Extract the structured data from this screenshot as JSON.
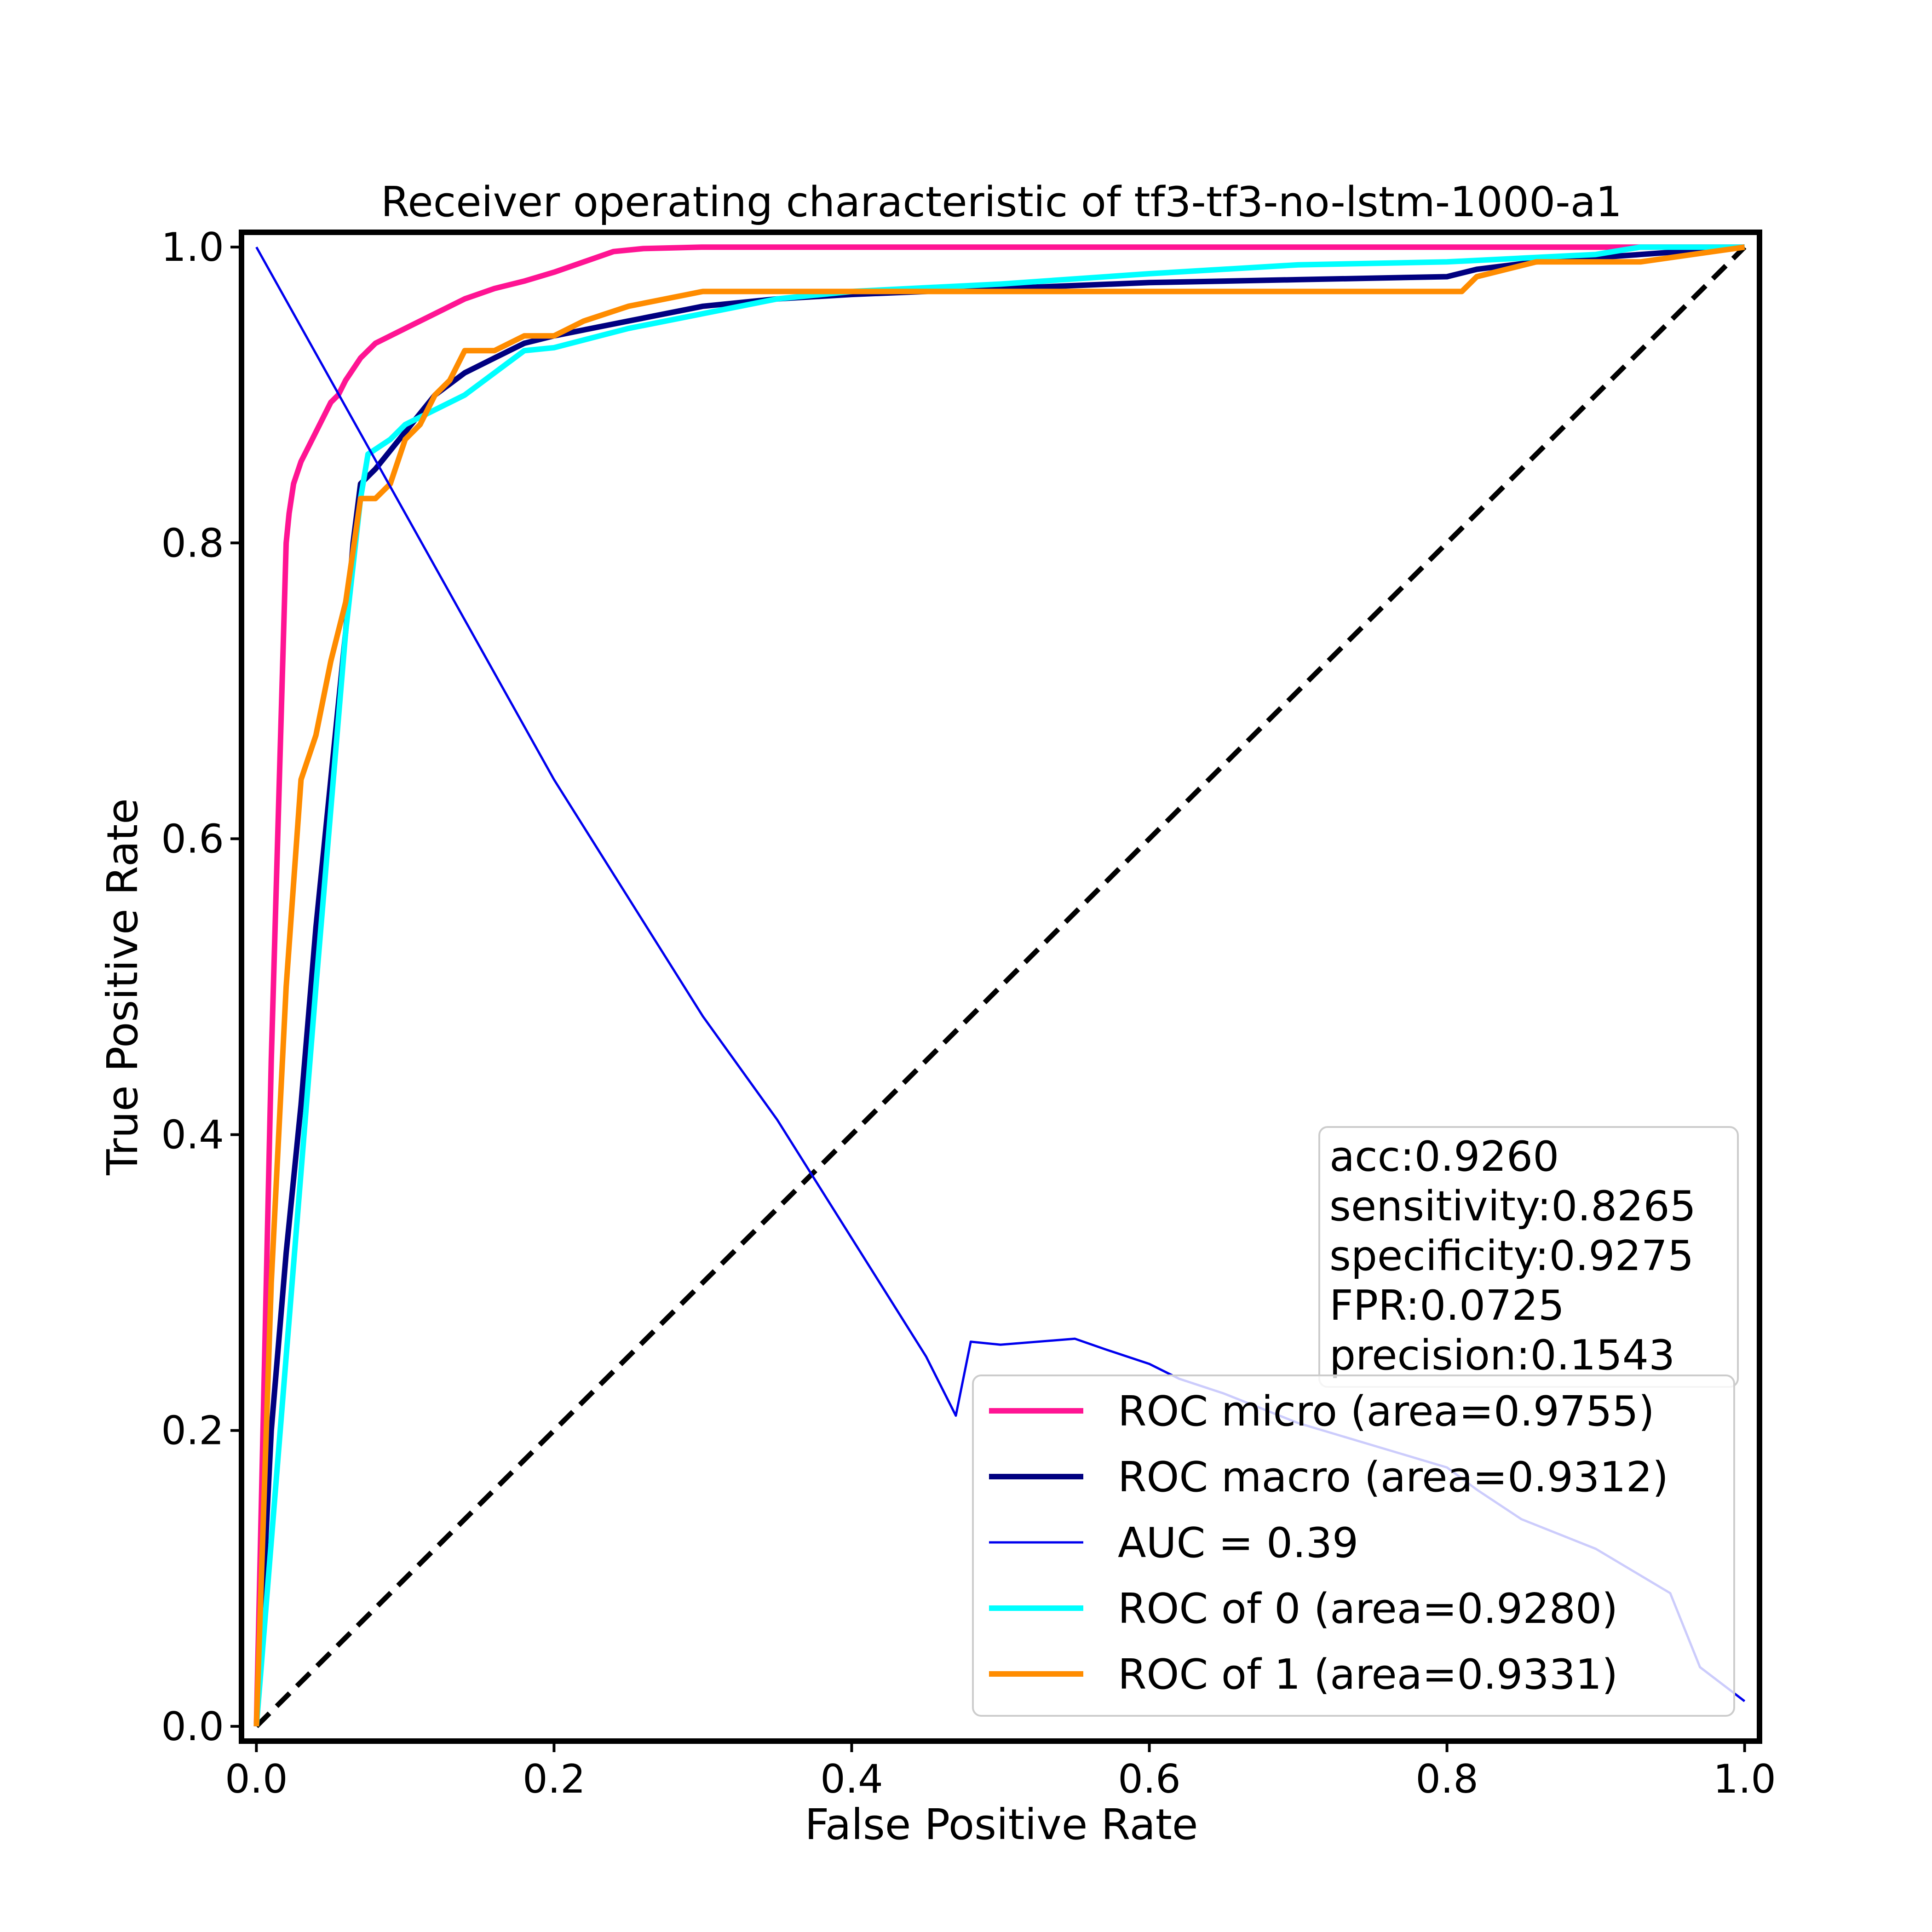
{
  "chart_data": {
    "type": "line",
    "title": "Receiver operating characteristic of tf3-tf3-no-lstm-1000-a1",
    "xlabel": "False Positive Rate",
    "ylabel": "True Positive Rate",
    "xlim": [
      -0.01,
      1.01
    ],
    "ylim": [
      -0.01,
      1.01
    ],
    "xticks": [
      "0.0",
      "0.2",
      "0.4",
      "0.6",
      "0.8",
      "1.0"
    ],
    "yticks": [
      "0.0",
      "0.2",
      "0.4",
      "0.6",
      "0.8",
      "1.0"
    ],
    "grid": false,
    "legend_position": "lower-right",
    "stats_box": {
      "position": "right",
      "lines": [
        "acc:0.9260",
        "sensitivity:0.8265",
        "specificity:0.9275",
        "FPR:0.0725",
        "precision:0.1543"
      ]
    },
    "series": [
      {
        "name": "ROC micro (area=0.9755)",
        "color": "#ff1493",
        "width": "thick",
        "x": [
          0,
          0.01,
          0.02,
          0.022,
          0.025,
          0.03,
          0.035,
          0.04,
          0.05,
          0.055,
          0.06,
          0.07,
          0.08,
          0.09,
          0.1,
          0.12,
          0.14,
          0.16,
          0.18,
          0.2,
          0.22,
          0.24,
          0.26,
          0.3,
          0.4,
          0.6,
          0.8,
          1.0
        ],
        "y": [
          0,
          0.45,
          0.8,
          0.82,
          0.84,
          0.855,
          0.865,
          0.875,
          0.895,
          0.9,
          0.91,
          0.925,
          0.935,
          0.94,
          0.945,
          0.955,
          0.965,
          0.972,
          0.977,
          0.983,
          0.99,
          0.997,
          0.999,
          1.0,
          1.0,
          1.0,
          1.0,
          1.0
        ]
      },
      {
        "name": "ROC macro (area=0.9312)",
        "color": "#000080",
        "width": "thick",
        "x": [
          0,
          0.01,
          0.02,
          0.03,
          0.04,
          0.05,
          0.06,
          0.065,
          0.07,
          0.075,
          0.08,
          0.1,
          0.12,
          0.14,
          0.16,
          0.18,
          0.2,
          0.25,
          0.3,
          0.35,
          0.4,
          0.5,
          0.6,
          0.7,
          0.8,
          0.82,
          0.86,
          0.93,
          1.0
        ],
        "y": [
          0,
          0.2,
          0.32,
          0.42,
          0.54,
          0.64,
          0.74,
          0.8,
          0.84,
          0.845,
          0.85,
          0.875,
          0.9,
          0.915,
          0.925,
          0.935,
          0.94,
          0.95,
          0.96,
          0.965,
          0.968,
          0.972,
          0.976,
          0.978,
          0.98,
          0.985,
          0.99,
          0.995,
          1.0
        ]
      },
      {
        "name": "AUC = 0.39",
        "color": "#0000ee",
        "width": "thin",
        "x": [
          0.0,
          0.05,
          0.1,
          0.15,
          0.2,
          0.25,
          0.3,
          0.35,
          0.4,
          0.45,
          0.47,
          0.48,
          0.5,
          0.55,
          0.57,
          0.6,
          0.62,
          0.65,
          0.7,
          0.75,
          0.8,
          0.82,
          0.85,
          0.9,
          0.95,
          0.97,
          1.0
        ],
        "y": [
          1.0,
          0.91,
          0.82,
          0.73,
          0.64,
          0.56,
          0.48,
          0.41,
          0.33,
          0.25,
          0.21,
          0.26,
          0.258,
          0.262,
          0.255,
          0.245,
          0.235,
          0.225,
          0.205,
          0.19,
          0.175,
          0.16,
          0.14,
          0.12,
          0.09,
          0.04,
          0.017
        ]
      },
      {
        "name": "ROC of 0 (area=0.9280)",
        "color": "#00ffff",
        "width": "thick",
        "x": [
          0,
          0.02,
          0.04,
          0.06,
          0.07,
          0.075,
          0.09,
          0.1,
          0.12,
          0.14,
          0.16,
          0.18,
          0.2,
          0.25,
          0.3,
          0.35,
          0.4,
          0.5,
          0.6,
          0.7,
          0.8,
          0.9,
          0.93,
          1.0
        ],
        "y": [
          0,
          0.25,
          0.5,
          0.74,
          0.83,
          0.86,
          0.87,
          0.88,
          0.89,
          0.9,
          0.915,
          0.93,
          0.932,
          0.945,
          0.955,
          0.965,
          0.97,
          0.975,
          0.982,
          0.988,
          0.99,
          0.995,
          1.0,
          1.0
        ]
      },
      {
        "name": "ROC of 1 (area=0.9331)",
        "color": "#ff8c00",
        "width": "thick",
        "x": [
          0,
          0.01,
          0.02,
          0.03,
          0.04,
          0.05,
          0.06,
          0.07,
          0.08,
          0.09,
          0.1,
          0.11,
          0.12,
          0.13,
          0.14,
          0.16,
          0.18,
          0.2,
          0.22,
          0.25,
          0.3,
          0.35,
          0.4,
          0.5,
          0.6,
          0.7,
          0.8,
          0.81,
          0.82,
          0.86,
          0.93,
          1.0
        ],
        "y": [
          0,
          0.3,
          0.5,
          0.64,
          0.67,
          0.72,
          0.76,
          0.83,
          0.83,
          0.84,
          0.87,
          0.88,
          0.9,
          0.91,
          0.93,
          0.93,
          0.94,
          0.94,
          0.95,
          0.96,
          0.97,
          0.97,
          0.97,
          0.97,
          0.97,
          0.97,
          0.97,
          0.97,
          0.98,
          0.99,
          0.99,
          1.0
        ]
      },
      {
        "name": "",
        "color": "#000000",
        "width": "dashed",
        "x": [
          0,
          1
        ],
        "y": [
          0,
          1
        ]
      }
    ],
    "legend": [
      {
        "label": "ROC micro (area=0.9755)",
        "color": "#ff1493",
        "width": "thick"
      },
      {
        "label": "ROC macro (area=0.9312)",
        "color": "#000080",
        "width": "thick"
      },
      {
        "label": "AUC = 0.39",
        "color": "#0000ee",
        "width": "thin"
      },
      {
        "label": "ROC of 0 (area=0.9280)",
        "color": "#00ffff",
        "width": "thick"
      },
      {
        "label": "ROC of 1 (area=0.9331)",
        "color": "#ff8c00",
        "width": "thick"
      }
    ]
  }
}
